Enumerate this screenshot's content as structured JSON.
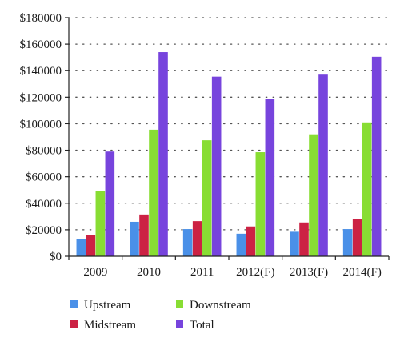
{
  "chart_data": {
    "type": "bar",
    "title": "",
    "xlabel": "",
    "ylabel": "",
    "ylim": [
      0,
      180000
    ],
    "yticks": [
      0,
      20000,
      40000,
      60000,
      80000,
      100000,
      120000,
      140000,
      160000,
      180000
    ],
    "ytick_labels": [
      "$0",
      "$20000",
      "$40000",
      "$60000",
      "$80000",
      "$100000",
      "$120000",
      "$140000",
      "$160000",
      "$180000"
    ],
    "grid": "horizontal-dotted",
    "legend_position": "bottom",
    "categories": [
      "2009",
      "2010",
      "2011",
      "2012(F)",
      "2013(F)",
      "2014(F)"
    ],
    "series": [
      {
        "name": "Upstream",
        "color": "#4a90e8",
        "values": [
          13000,
          26000,
          20500,
          17000,
          18500,
          20500
        ]
      },
      {
        "name": "Midstream",
        "color": "#cc2244",
        "values": [
          16000,
          31500,
          26500,
          22500,
          25500,
          28000
        ]
      },
      {
        "name": "Downstream",
        "color": "#88dd33",
        "values": [
          49500,
          95500,
          87500,
          78500,
          92000,
          101000
        ]
      },
      {
        "name": "Total",
        "color": "#7744dd",
        "values": [
          79000,
          154000,
          135500,
          118500,
          137000,
          150500
        ]
      }
    ]
  }
}
